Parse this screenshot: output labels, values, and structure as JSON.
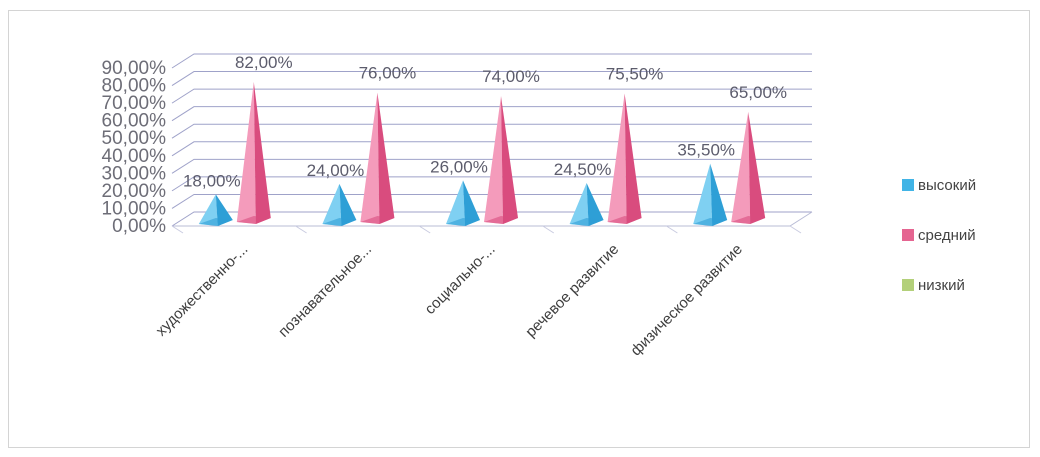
{
  "chart_data": {
    "type": "bar",
    "categories": [
      "художественно-...",
      "познавательное...",
      "социально-...",
      "речевое развитие",
      "физическое развитие"
    ],
    "series": [
      {
        "name": "высокий",
        "values": [
          18.0,
          24.0,
          26.0,
          24.5,
          35.5
        ],
        "labels": [
          "18,00%",
          "24,00%",
          "26,00%",
          "24,50%",
          "35,50%"
        ]
      },
      {
        "name": "средний",
        "values": [
          82.0,
          76.0,
          74.0,
          75.5,
          65.0
        ],
        "labels": [
          "82,00%",
          "76,00%",
          "74,00%",
          "75,50%",
          "65,00%"
        ]
      },
      {
        "name": "низкий",
        "values": [
          0,
          0,
          0,
          0,
          0
        ],
        "labels": []
      }
    ],
    "y_ticks": [
      "0,00%",
      "10,00%",
      "20,00%",
      "30,00%",
      "40,00%",
      "50,00%",
      "60,00%",
      "70,00%",
      "80,00%",
      "90,00%"
    ],
    "ylim": [
      0,
      90
    ],
    "grid": true,
    "legend_position": "right",
    "colors": {
      "высокий": "#41b4e6",
      "средний": "#e56591",
      "низкий": "#b3d07a"
    }
  }
}
